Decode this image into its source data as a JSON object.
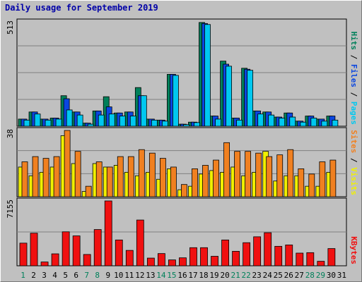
{
  "title": "Daily usage for September 2019",
  "colors": {
    "pages": "#00c8f0",
    "files": "#0a46e0",
    "hits": "#00805a",
    "visits": "#f0f000",
    "sites": "#f08020",
    "kbytes": "#f01010",
    "weekend": "#00805a",
    "weekday": "#000000"
  },
  "chart_data": [
    {
      "type": "bar",
      "panel": "hits-files-pages",
      "ymax_label": "513",
      "ylim": [
        0,
        513
      ],
      "legend": [
        "Pages",
        "Files",
        "Hits"
      ],
      "categories": [
        "1",
        "2",
        "3",
        "4",
        "5",
        "6",
        "7",
        "8",
        "9",
        "10",
        "11",
        "12",
        "13",
        "14",
        "15",
        "16",
        "17",
        "18",
        "19",
        "20",
        "21",
        "22",
        "23",
        "24",
        "25",
        "26",
        "27",
        "28",
        "29",
        "30",
        "31"
      ],
      "series": [
        {
          "name": "Hits",
          "values": [
            35,
            70,
            35,
            40,
            150,
            70,
            15,
            75,
            145,
            65,
            70,
            190,
            35,
            30,
            255,
            10,
            20,
            510,
            50,
            320,
            40,
            285,
            75,
            70,
            45,
            65,
            25,
            50,
            35,
            50,
            null
          ]
        },
        {
          "name": "Files",
          "values": [
            35,
            70,
            35,
            40,
            135,
            70,
            15,
            75,
            95,
            65,
            70,
            150,
            35,
            30,
            255,
            10,
            20,
            505,
            50,
            305,
            40,
            280,
            75,
            70,
            45,
            65,
            25,
            50,
            35,
            50,
            null
          ]
        },
        {
          "name": "Pages",
          "values": [
            30,
            60,
            30,
            35,
            80,
            55,
            10,
            55,
            60,
            50,
            50,
            150,
            30,
            25,
            250,
            8,
            18,
            500,
            35,
            295,
            30,
            275,
            60,
            55,
            40,
            45,
            20,
            40,
            25,
            30,
            null
          ]
        }
      ]
    },
    {
      "type": "bar",
      "panel": "visits-sites",
      "ymax_label": "38",
      "ylim": [
        0,
        38
      ],
      "legend": [
        "Visits",
        "Sites"
      ],
      "categories": [
        "1",
        "2",
        "3",
        "4",
        "5",
        "6",
        "7",
        "8",
        "9",
        "10",
        "11",
        "12",
        "13",
        "14",
        "15",
        "16",
        "17",
        "18",
        "19",
        "20",
        "21",
        "22",
        "23",
        "24",
        "25",
        "26",
        "27",
        "28",
        "29",
        "30",
        "31"
      ],
      "series": [
        {
          "name": "Visits",
          "values": [
            17,
            12,
            14,
            17,
            35,
            19,
            3,
            19,
            17,
            18,
            14,
            12,
            14,
            10,
            16,
            4,
            6,
            13,
            15,
            14,
            17,
            12,
            14,
            26,
            9,
            12,
            12,
            6,
            6,
            14,
            null
          ]
        },
        {
          "name": "Sites",
          "values": [
            20,
            23,
            22,
            23,
            38,
            26,
            6,
            20,
            17,
            23,
            23,
            27,
            25,
            22,
            17,
            7,
            16,
            18,
            21,
            31,
            26,
            26,
            25,
            23,
            24,
            27,
            16,
            13,
            20,
            21,
            null
          ]
        }
      ]
    },
    {
      "type": "bar",
      "panel": "kbytes",
      "ymax_label": "7155",
      "ylim": [
        0,
        7155
      ],
      "legend": [
        "KBytes"
      ],
      "categories": [
        "1",
        "2",
        "3",
        "4",
        "5",
        "6",
        "7",
        "8",
        "9",
        "10",
        "11",
        "12",
        "13",
        "14",
        "15",
        "16",
        "17",
        "18",
        "19",
        "20",
        "21",
        "22",
        "23",
        "24",
        "25",
        "26",
        "27",
        "28",
        "29",
        "30",
        "31"
      ],
      "series": [
        {
          "name": "KBytes",
          "values": [
            2500,
            3600,
            420,
            1320,
            3750,
            3300,
            1250,
            4000,
            7155,
            2850,
            1700,
            5050,
            850,
            1350,
            650,
            880,
            2000,
            2000,
            1050,
            2850,
            1600,
            2550,
            3200,
            3650,
            2150,
            2300,
            1400,
            1450,
            500,
            1900,
            null
          ]
        }
      ]
    }
  ],
  "weekend_days": [
    1,
    7,
    8,
    14,
    15,
    21,
    22,
    28,
    29
  ]
}
